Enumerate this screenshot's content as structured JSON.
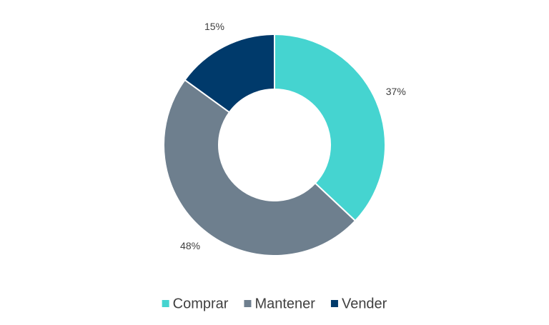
{
  "chart_data": {
    "type": "donut",
    "categories": [
      "Comprar",
      "Mantener",
      "Vender"
    ],
    "values": [
      37,
      48,
      15
    ],
    "value_labels": [
      "37%",
      "48%",
      "15%"
    ],
    "colors": [
      "#45D4D0",
      "#6E7F8E",
      "#003A6B"
    ],
    "legend": "bottom"
  }
}
